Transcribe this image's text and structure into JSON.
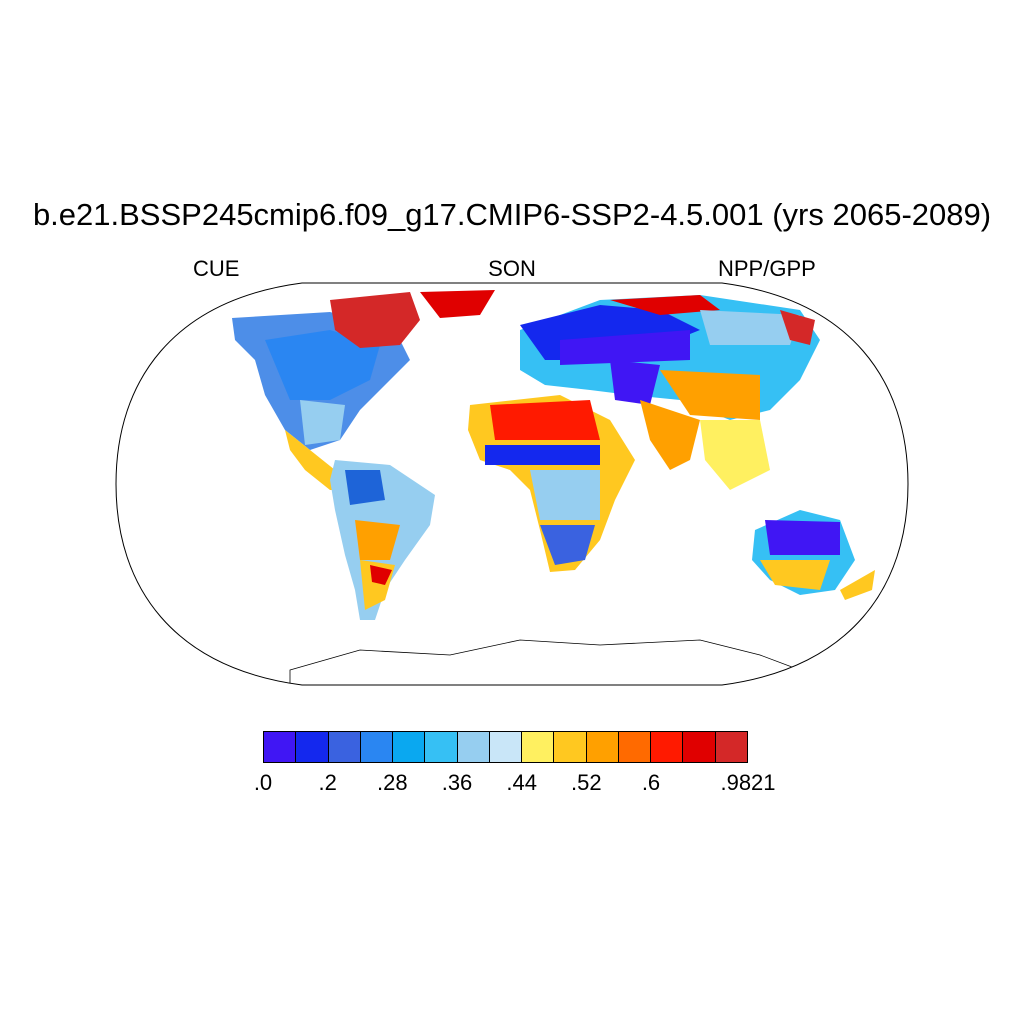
{
  "title": "b.e21.BSSP245cmip6.f09_g17.CMIP6-SSP2-4.5.001 (yrs 2065-2089)",
  "left_label": "CUE",
  "center_label": "SON",
  "right_label": "NPP/GPP",
  "projection": "Robinson",
  "colorbar": {
    "colors": [
      "#4016f4",
      "#1428ee",
      "#3a62e0",
      "#2a86f2",
      "#0aa8f0",
      "#36c0f4",
      "#96cef0",
      "#c9e6f8",
      "#fff060",
      "#ffc820",
      "#ffa000",
      "#ff6a00",
      "#ff1a00",
      "#e00000",
      "#d42828"
    ],
    "labels": [
      ".0",
      ".2",
      ".28",
      ".36",
      ".44",
      ".52",
      ".6",
      ".9821"
    ],
    "label_boundary_index": [
      0,
      2,
      4,
      6,
      8,
      10,
      12,
      15
    ]
  }
}
